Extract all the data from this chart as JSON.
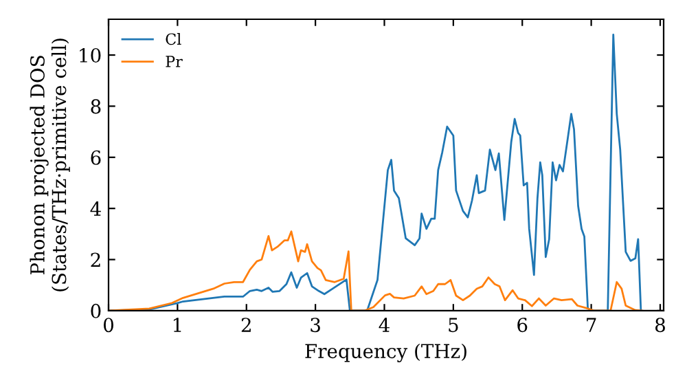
{
  "chart_data": {
    "type": "line",
    "xlabel": "Frequency (THz)",
    "ylabel": "Phonon projected DOS\n(States/THz·primitive cell)",
    "xlim": [
      0,
      8.05
    ],
    "ylim": [
      0,
      11.4
    ],
    "xticks": [
      0,
      1,
      2,
      3,
      4,
      5,
      6,
      7,
      8
    ],
    "yticks": [
      0,
      2,
      4,
      6,
      8,
      10
    ],
    "grid": false,
    "legend": "top left",
    "series": [
      {
        "name": "Cl",
        "color": "#1f77b4",
        "x": [
          0,
          0.59,
          0.99,
          1.08,
          1.68,
          1.95,
          2.05,
          2.15,
          2.22,
          2.32,
          2.38,
          2.48,
          2.58,
          2.65,
          2.73,
          2.79,
          2.88,
          2.95,
          3.05,
          3.13,
          3.25,
          3.45,
          3.5,
          3.75,
          3.9,
          3.98,
          4.05,
          4.1,
          4.14,
          4.21,
          4.31,
          4.44,
          4.51,
          4.54,
          4.61,
          4.68,
          4.73,
          4.78,
          4.84,
          4.91,
          5.0,
          5.04,
          5.14,
          5.21,
          5.27,
          5.34,
          5.37,
          5.46,
          5.53,
          5.61,
          5.66,
          5.74,
          5.84,
          5.89,
          5.94,
          5.97,
          6.02,
          6.07,
          6.1,
          6.17,
          6.22,
          6.26,
          6.29,
          6.34,
          6.39,
          6.44,
          6.49,
          6.54,
          6.59,
          6.66,
          6.71,
          6.75,
          6.81,
          6.86,
          6.9,
          6.95,
          7.0,
          7.24,
          7.32,
          7.37,
          7.42,
          7.5,
          7.57,
          7.64,
          7.68,
          7.72
        ],
        "values": [
          0,
          0.05,
          0.29,
          0.36,
          0.55,
          0.55,
          0.77,
          0.82,
          0.77,
          0.9,
          0.74,
          0.77,
          1.04,
          1.5,
          0.9,
          1.29,
          1.47,
          0.95,
          0.77,
          0.65,
          0.86,
          1.22,
          0,
          0,
          1.2,
          3.5,
          5.5,
          5.9,
          4.7,
          4.4,
          2.83,
          2.56,
          2.83,
          3.8,
          3.2,
          3.6,
          3.6,
          5.5,
          6.2,
          7.2,
          6.85,
          4.7,
          3.9,
          3.65,
          4.3,
          5.3,
          4.6,
          4.7,
          6.3,
          5.5,
          6.15,
          3.55,
          6.6,
          7.5,
          6.95,
          6.85,
          4.9,
          5.0,
          3.2,
          1.4,
          4.4,
          5.8,
          5.3,
          2.1,
          2.8,
          5.8,
          5.1,
          5.7,
          5.45,
          6.75,
          7.7,
          7.1,
          4.1,
          3.2,
          2.9,
          0.1,
          0,
          0,
          10.8,
          7.7,
          6.3,
          2.3,
          1.95,
          2.05,
          2.8,
          0
        ]
      },
      {
        "name": "Pr",
        "color": "#ff7f0e",
        "x": [
          0,
          0.59,
          0.92,
          1.08,
          1.52,
          1.68,
          1.82,
          1.95,
          2.05,
          2.15,
          2.22,
          2.32,
          2.37,
          2.45,
          2.55,
          2.6,
          2.65,
          2.75,
          2.79,
          2.85,
          2.88,
          2.95,
          3.03,
          3.08,
          3.15,
          3.28,
          3.41,
          3.48,
          3.52,
          3.71,
          3.84,
          4.01,
          4.08,
          4.14,
          4.28,
          4.44,
          4.54,
          4.61,
          4.71,
          4.78,
          4.88,
          4.96,
          5.04,
          5.14,
          5.24,
          5.34,
          5.42,
          5.51,
          5.6,
          5.67,
          5.75,
          5.86,
          5.94,
          6.04,
          6.14,
          6.24,
          6.34,
          6.46,
          6.57,
          6.72,
          6.8,
          6.93,
          7.04,
          7.28,
          7.37,
          7.44,
          7.5,
          7.64,
          7.74
        ],
        "values": [
          0,
          0.08,
          0.3,
          0.5,
          0.86,
          1.06,
          1.12,
          1.12,
          1.6,
          1.93,
          2.0,
          2.92,
          2.36,
          2.5,
          2.75,
          2.75,
          3.1,
          1.93,
          2.36,
          2.3,
          2.6,
          1.93,
          1.67,
          1.58,
          1.2,
          1.12,
          1.25,
          2.32,
          0,
          0,
          0.14,
          0.6,
          0.66,
          0.52,
          0.48,
          0.59,
          0.95,
          0.65,
          0.77,
          1.04,
          1.04,
          1.2,
          0.59,
          0.41,
          0.59,
          0.86,
          0.95,
          1.3,
          1.04,
          0.95,
          0.41,
          0.8,
          0.48,
          0.41,
          0.18,
          0.48,
          0.2,
          0.48,
          0.41,
          0.45,
          0.2,
          0.1,
          0,
          0,
          1.12,
          0.86,
          0.2,
          0.02,
          0
        ]
      }
    ]
  }
}
